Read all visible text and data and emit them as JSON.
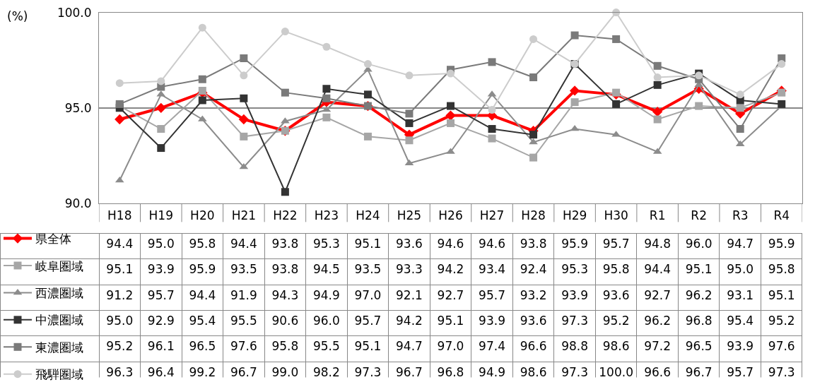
{
  "chart_data": {
    "type": "line",
    "ylabel": "(%)",
    "categories": [
      "H18",
      "H19",
      "H20",
      "H21",
      "H22",
      "H23",
      "H24",
      "H25",
      "H26",
      "H27",
      "H28",
      "H29",
      "H30",
      "R1",
      "R2",
      "R3",
      "R4"
    ],
    "ylim": [
      90,
      100
    ],
    "yticks": [
      {
        "value": 90,
        "label": "90.0"
      },
      {
        "value": 95,
        "label": "95.0"
      },
      {
        "value": 100,
        "label": "100.0"
      }
    ],
    "grid": "y",
    "legend": "bottom left",
    "series": [
      {
        "name": "県全体",
        "color": "#ff0000",
        "marker": "diamond",
        "values": [
          94.4,
          95.0,
          95.8,
          94.4,
          93.8,
          95.3,
          95.1,
          93.6,
          94.6,
          94.6,
          93.8,
          95.9,
          95.7,
          94.8,
          96.0,
          94.7,
          95.9
        ],
        "value_labels": [
          "94.4",
          "95.0",
          "95.8",
          "94.4",
          "93.8",
          "95.3",
          "95.1",
          "93.6",
          "94.6",
          "94.6",
          "93.8",
          "95.9",
          "95.7",
          "94.8",
          "96.0",
          "94.7",
          "95.9"
        ]
      },
      {
        "name": "岐阜圏域",
        "color": "#a6a6a6",
        "marker": "square",
        "values": [
          95.1,
          93.9,
          95.9,
          93.5,
          93.8,
          94.5,
          93.5,
          93.3,
          94.2,
          93.4,
          92.4,
          95.3,
          95.8,
          94.4,
          95.1,
          95.0,
          95.8
        ],
        "value_labels": [
          "95.1",
          "93.9",
          "95.9",
          "93.5",
          "93.8",
          "94.5",
          "93.5",
          "93.3",
          "94.2",
          "93.4",
          "92.4",
          "95.3",
          "95.8",
          "94.4",
          "95.1",
          "95.0",
          "95.8"
        ]
      },
      {
        "name": "西濃圏域",
        "color": "#8c8c8c",
        "marker": "triangle",
        "values": [
          91.2,
          95.7,
          94.4,
          91.9,
          94.3,
          94.9,
          97.0,
          92.1,
          92.7,
          95.7,
          93.2,
          93.9,
          93.6,
          92.7,
          96.2,
          93.1,
          95.1
        ],
        "value_labels": [
          "91.2",
          "95.7",
          "94.4",
          "91.9",
          "94.3",
          "94.9",
          "97.0",
          "92.1",
          "92.7",
          "95.7",
          "93.2",
          "93.9",
          "93.6",
          "92.7",
          "96.2",
          "93.1",
          "95.1"
        ]
      },
      {
        "name": "中濃圏域",
        "color": "#333333",
        "marker": "square",
        "values": [
          95.0,
          92.9,
          95.4,
          95.5,
          90.6,
          96.0,
          95.7,
          94.2,
          95.1,
          93.9,
          93.6,
          97.3,
          95.2,
          96.2,
          96.8,
          95.4,
          95.2
        ],
        "value_labels": [
          "95.0",
          "92.9",
          "95.4",
          "95.5",
          "90.6",
          "96.0",
          "95.7",
          "94.2",
          "95.1",
          "93.9",
          "93.6",
          "97.3",
          "95.2",
          "96.2",
          "96.8",
          "95.4",
          "95.2"
        ]
      },
      {
        "name": "東濃圏域",
        "color": "#7a7a7a",
        "marker": "square",
        "values": [
          95.2,
          96.1,
          96.5,
          97.6,
          95.8,
          95.5,
          95.1,
          94.7,
          97.0,
          97.4,
          96.6,
          98.8,
          98.6,
          97.2,
          96.5,
          93.9,
          97.6
        ],
        "value_labels": [
          "95.2",
          "96.1",
          "96.5",
          "97.6",
          "95.8",
          "95.5",
          "95.1",
          "94.7",
          "97.0",
          "97.4",
          "96.6",
          "98.8",
          "98.6",
          "97.2",
          "96.5",
          "93.9",
          "97.6"
        ]
      },
      {
        "name": "飛騨圏域",
        "color": "#cccccc",
        "marker": "circle",
        "values": [
          96.3,
          96.4,
          99.2,
          96.7,
          99.0,
          98.2,
          97.3,
          96.7,
          96.8,
          94.9,
          98.6,
          97.3,
          100.0,
          96.6,
          96.7,
          95.7,
          97.3
        ],
        "value_labels": [
          "96.3",
          "96.4",
          "99.2",
          "96.7",
          "99.0",
          "98.2",
          "97.3",
          "96.7",
          "96.8",
          "94.9",
          "98.6",
          "97.3",
          "100.0",
          "96.6",
          "96.7",
          "95.7",
          "97.3"
        ]
      }
    ]
  }
}
